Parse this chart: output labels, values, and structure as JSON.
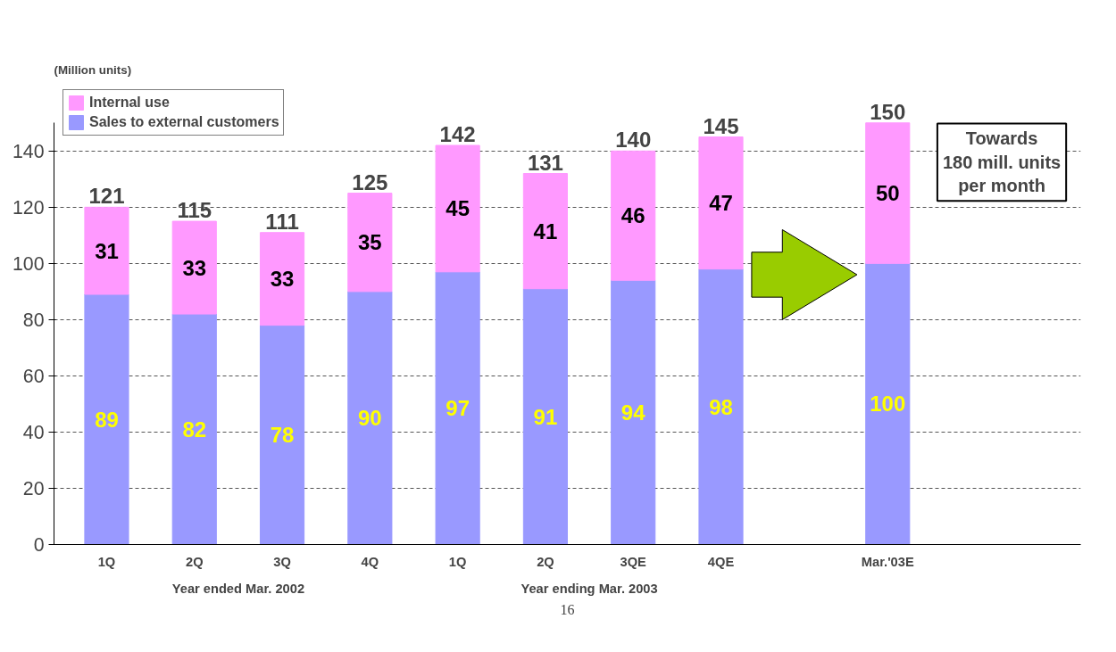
{
  "chart_data": {
    "type": "bar",
    "stacked": true,
    "ylabel": "(Million units)",
    "categories": [
      "1Q",
      "2Q",
      "3Q",
      "4Q",
      "1Q",
      "2Q",
      "3QE",
      "4QE",
      "Mar.'03E"
    ],
    "series": [
      {
        "name": "Sales to external customers",
        "color": "#9999ff",
        "values": [
          89,
          82,
          78,
          90,
          97,
          91,
          94,
          98,
          100
        ]
      },
      {
        "name": "Internal use",
        "color": "#ff99ff",
        "values": [
          31,
          33,
          33,
          35,
          45,
          41,
          46,
          47,
          50
        ]
      }
    ],
    "totals": [
      "121",
      "115",
      "111",
      "125",
      "142",
      "131",
      "140",
      "145",
      "150"
    ],
    "data_labels": true,
    "ylim": [
      0,
      150
    ],
    "yticks": [
      0,
      20,
      40,
      60,
      80,
      100,
      120,
      140
    ],
    "grid": "y",
    "legend": "top left",
    "annotations": [
      "Year ended Mar. 2002",
      "Year ending Mar. 2003",
      "Towards 180 mill. units per month",
      "16"
    ]
  }
}
